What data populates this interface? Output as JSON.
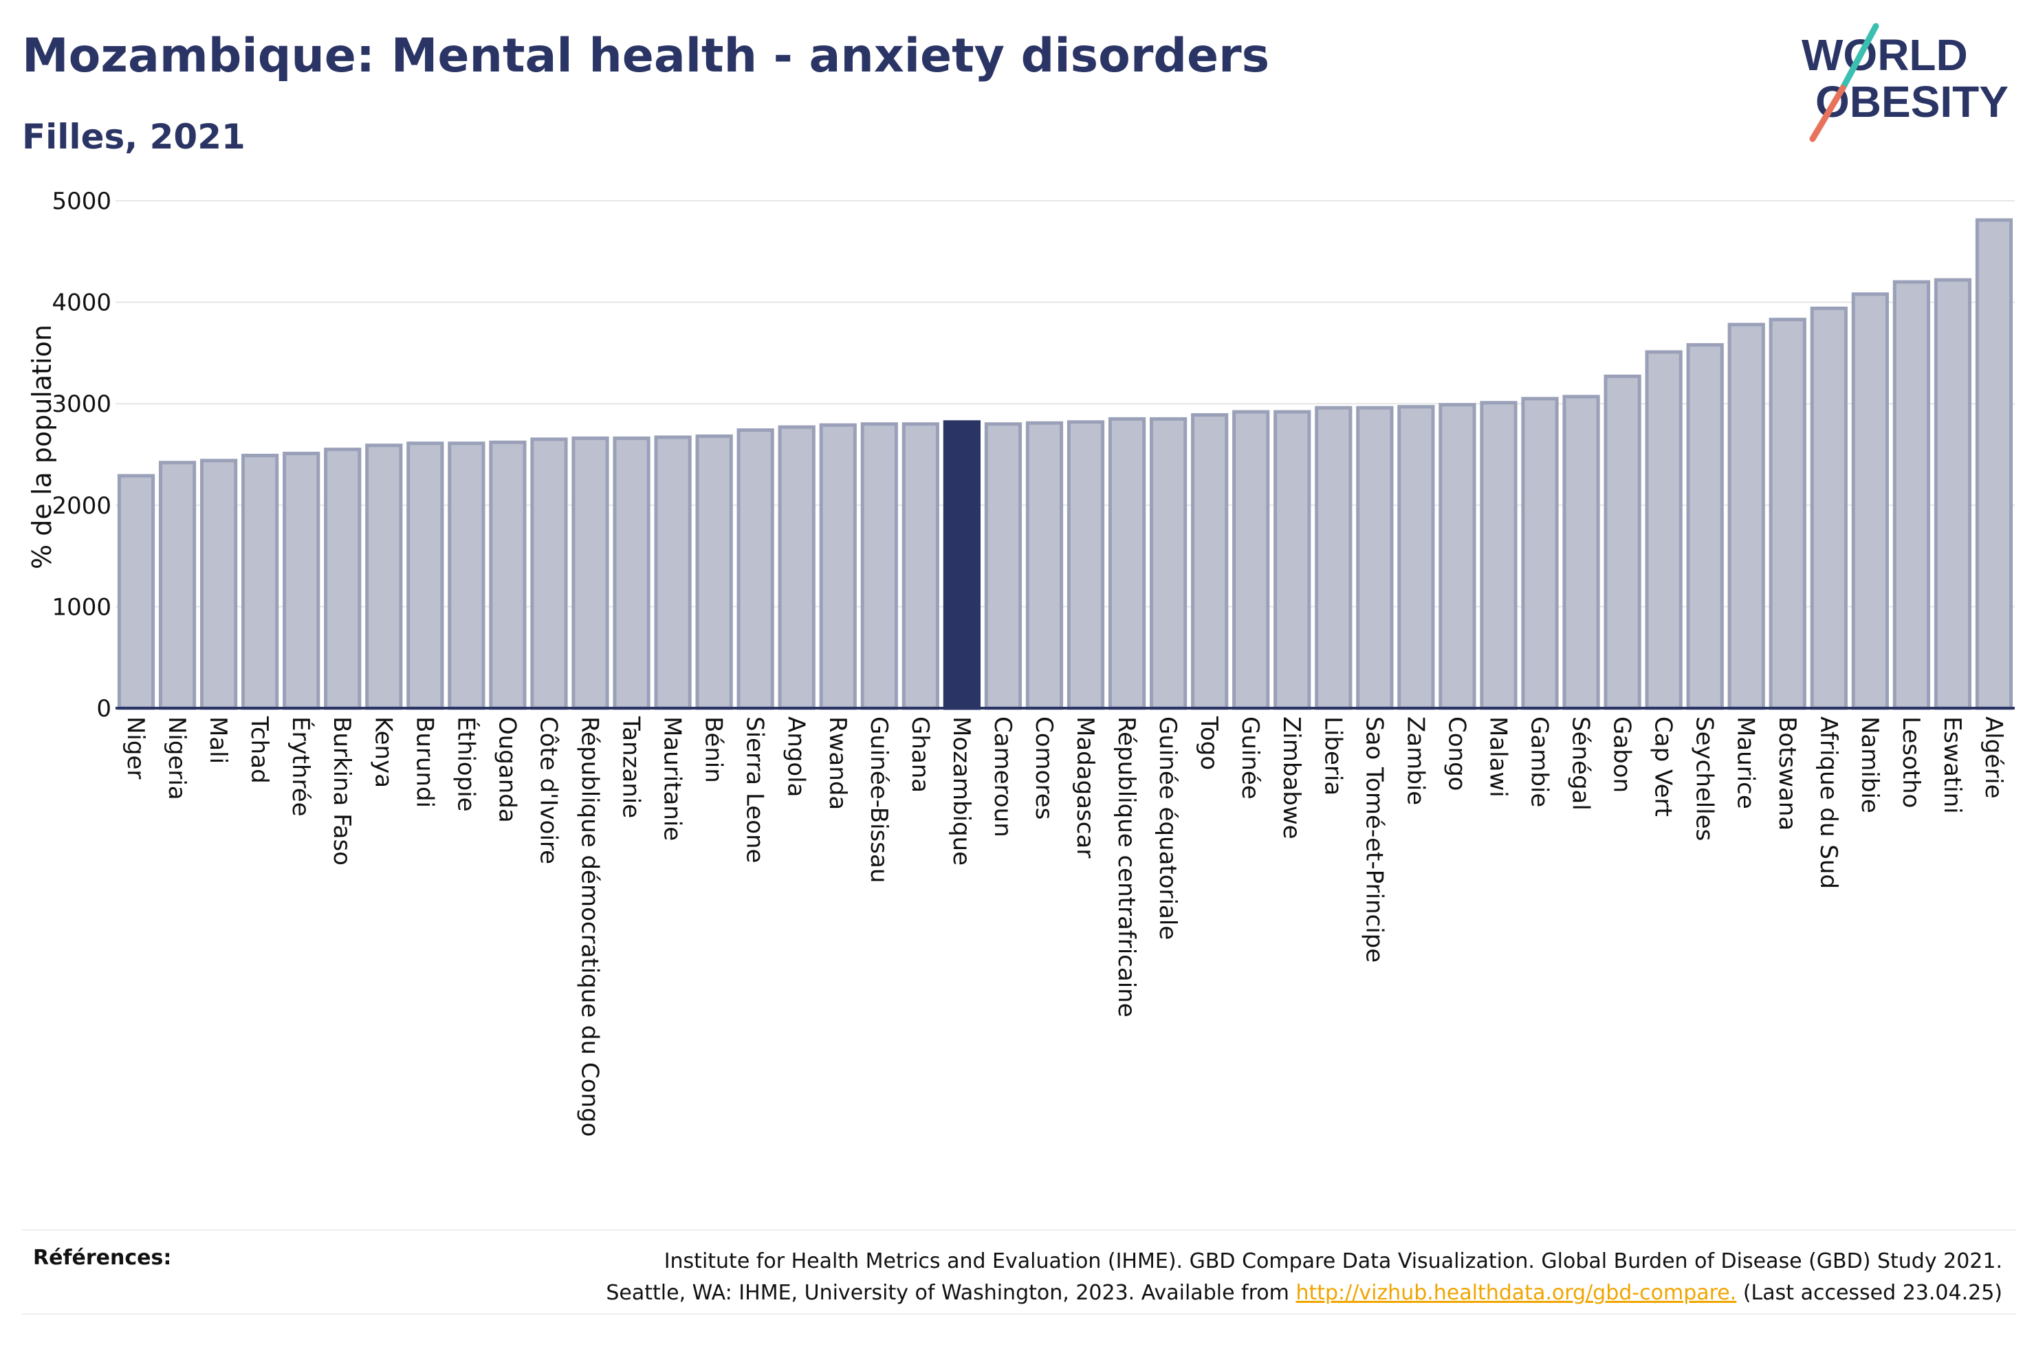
{
  "header": {
    "title": "Mozambique: Mental health - anxiety disorders",
    "subtitle": "Filles, 2021"
  },
  "logo": {
    "line1": "WORLD",
    "line2": "OBESITY"
  },
  "colors": {
    "title": "#2b3565",
    "bar_fill": "#bcc0cf",
    "bar_stroke": "#9aa0b8",
    "highlight": "#2b3565",
    "logo_teal": "#3bbfb0",
    "logo_coral": "#e8735c",
    "link": "#f0a500"
  },
  "chart_data": {
    "type": "bar",
    "ylabel": "% de la population",
    "ylim": [
      0,
      5000
    ],
    "yticks": [
      0,
      1000,
      2000,
      3000,
      4000,
      5000
    ],
    "grid": true,
    "highlight": "Mozambique",
    "categories": [
      "Niger",
      "Nigeria",
      "Mali",
      "Tchad",
      "Érythrée",
      "Burkina Faso",
      "Kenya",
      "Burundi",
      "Éthiopie",
      "Ouganda",
      "Côte d'Ivoire",
      "République démocratique du Congo",
      "Tanzanie",
      "Mauritanie",
      "Bénin",
      "Sierra Leone",
      "Angola",
      "Rwanda",
      "Guinée-Bissau",
      "Ghana",
      "Mozambique",
      "Cameroun",
      "Comores",
      "Madagascar",
      "République centrafricaine",
      "Guinée équatoriale",
      "Togo",
      "Guinée",
      "Zimbabwe",
      "Liberia",
      "Sao Tomé-et-Principe",
      "Zambie",
      "Congo",
      "Malawi",
      "Gambie",
      "Sénégal",
      "Gabon",
      "Cap Vert",
      "Seychelles",
      "Maurice",
      "Botswana",
      "Afrique du Sud",
      "Namibie",
      "Lesotho",
      "Eswatini",
      "Algérie"
    ],
    "values": [
      2290,
      2420,
      2440,
      2490,
      2510,
      2550,
      2590,
      2610,
      2610,
      2620,
      2650,
      2660,
      2660,
      2670,
      2680,
      2740,
      2770,
      2790,
      2800,
      2800,
      2820,
      2800,
      2810,
      2820,
      2850,
      2850,
      2890,
      2920,
      2920,
      2960,
      2960,
      2970,
      2990,
      3010,
      3050,
      3070,
      3270,
      3510,
      3580,
      3780,
      3830,
      3940,
      4080,
      4200,
      4220,
      4810
    ]
  },
  "footer": {
    "label": "Références:",
    "line1": "Institute for Health Metrics and Evaluation (IHME). GBD Compare Data Visualization. Global Burden of Disease (GBD) Study 2021.",
    "line2_before": "Seattle, WA: IHME, University of Washington, 2023. Available from",
    "link_text": "http://vizhub.healthdata.org/gbd-compare.",
    "line2_after": "(Last accessed 23.04.25)"
  }
}
